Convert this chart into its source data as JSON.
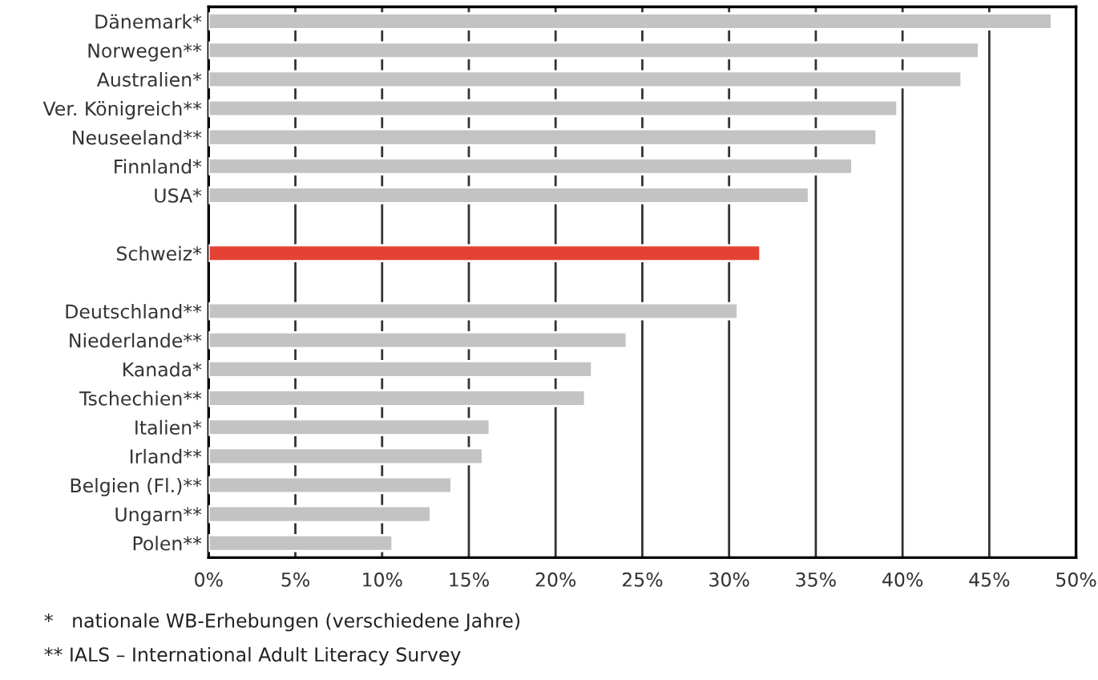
{
  "chart_data": {
    "type": "bar",
    "orientation": "horizontal",
    "categories": [
      "Dänemark*",
      "Norwegen**",
      "Australien*",
      "Ver. Königreich**",
      "Neuseeland**",
      "Finnland*",
      "USA*",
      null,
      "Schweiz*",
      null,
      "Deutschland**",
      "Niederlande**",
      "Kanada*",
      "Tschechien**",
      "Italien*",
      "Irland**",
      "Belgien (Fl.)**",
      "Ungarn**",
      "Polen**"
    ],
    "values": [
      48.6,
      44.4,
      43.4,
      39.7,
      38.5,
      37.1,
      34.6,
      null,
      31.8,
      null,
      30.5,
      24.1,
      22.1,
      21.7,
      16.2,
      15.8,
      14.0,
      12.8,
      10.6
    ],
    "colors": [
      "#c3c3c3",
      "#c3c3c3",
      "#c3c3c3",
      "#c3c3c3",
      "#c3c3c3",
      "#c3c3c3",
      "#c3c3c3",
      "#c3c3c3",
      "#e34234",
      "#c3c3c3",
      "#c3c3c3",
      "#c3c3c3",
      "#c3c3c3",
      "#c3c3c3",
      "#c3c3c3",
      "#c3c3c3",
      "#c3c3c3",
      "#c3c3c3",
      "#c3c3c3"
    ],
    "xlim": [
      0,
      50
    ],
    "xticks": [
      {
        "value": 0,
        "label": "0%"
      },
      {
        "value": 5,
        "label": "5%"
      },
      {
        "value": 10,
        "label": "10%"
      },
      {
        "value": 15,
        "label": "15%"
      },
      {
        "value": 20,
        "label": "20%"
      },
      {
        "value": 25,
        "label": "25%"
      },
      {
        "value": 30,
        "label": "30%"
      },
      {
        "value": 35,
        "label": "35%"
      },
      {
        "value": 40,
        "label": "40%"
      },
      {
        "value": 45,
        "label": "45%"
      },
      {
        "value": 50,
        "label": "50%"
      }
    ],
    "grid": "x",
    "annotations": [
      "*   nationale WB-Erhebungen (verschiedene Jahre)",
      "** IALS – International Adult Literacy Survey"
    ]
  }
}
